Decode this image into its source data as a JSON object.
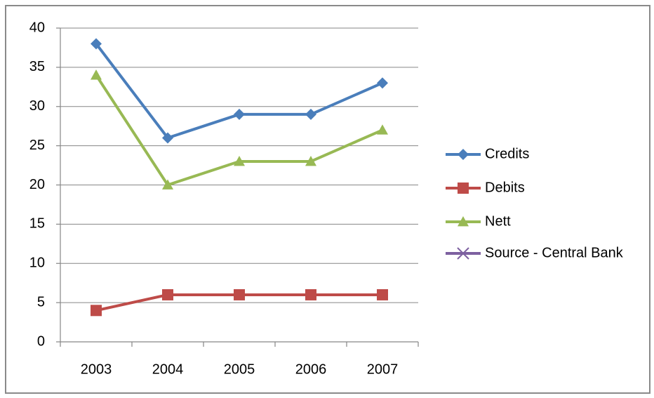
{
  "chart_data": {
    "type": "line",
    "categories": [
      "2003",
      "2004",
      "2005",
      "2006",
      "2007"
    ],
    "series": [
      {
        "name": "Credits",
        "color": "#4a7ebb",
        "marker": "diamond",
        "values": [
          38,
          26,
          29,
          29,
          33
        ]
      },
      {
        "name": "Debits",
        "color": "#be4b48",
        "marker": "square",
        "values": [
          4,
          6,
          6,
          6,
          6
        ]
      },
      {
        "name": "Nett",
        "color": "#98b954",
        "marker": "triangle",
        "values": [
          34,
          20,
          23,
          23,
          27
        ]
      },
      {
        "name": "Source - Central Bank",
        "color": "#7d60a0",
        "marker": "x",
        "values": [
          null,
          null,
          null,
          null,
          null
        ]
      }
    ],
    "ylim": [
      0,
      40
    ],
    "yticks": [
      0,
      5,
      10,
      15,
      20,
      25,
      30,
      35,
      40
    ],
    "grid": true,
    "legend": "right"
  }
}
